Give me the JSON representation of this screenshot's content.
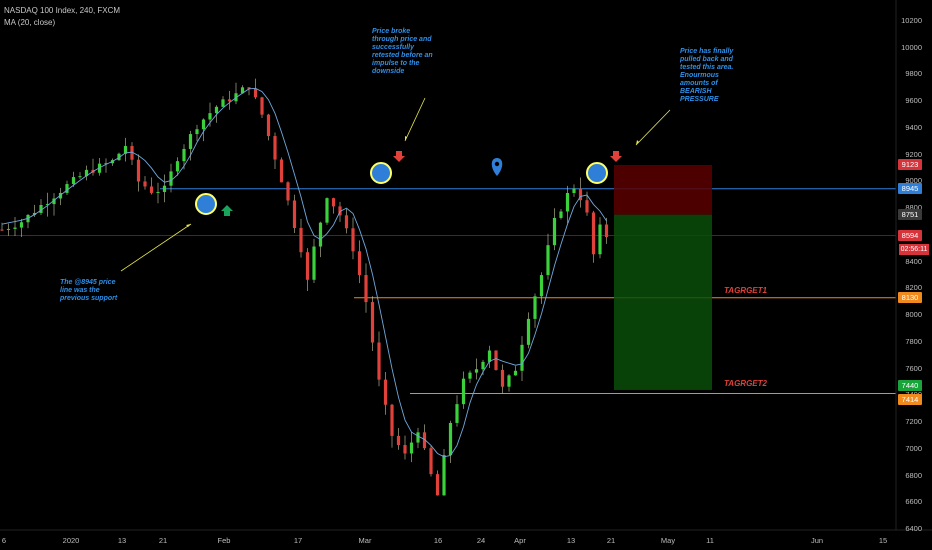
{
  "header": {
    "symbol_line": "NASDAQ 100 Index, 240, FXCM",
    "indicator_line": "MA (20, close)"
  },
  "annotations": {
    "top_note": "Price broke\nthrough price and\nsuccessfully\nretested before an\nimpulse to the\ndownside",
    "right_note": "Price has finally\npulled back and\ntested this area.\nEnourmous\namounts of\nBEARISH\nPRESSURE",
    "left_note": "The @8945 price\nline was the\nprevious support",
    "target1": "TAGRGET1",
    "target2": "TAGRGET2"
  },
  "price_labels": [
    {
      "text": "9123",
      "value": 9123,
      "color": "#d6333b"
    },
    {
      "text": "8945",
      "value": 8945,
      "color": "#2f7fd8"
    },
    {
      "text": "8751",
      "value": 8751,
      "color": "#3a3a3a"
    },
    {
      "text": "8594",
      "value": 8594,
      "color": "#d6333b"
    },
    {
      "text": "8130",
      "value": 8130,
      "color": "#f08a1c"
    },
    {
      "text": "7440",
      "value": 7440,
      "color": "#1aa33a"
    },
    {
      "text": "7414",
      "value": 7414,
      "color": "#f08a1c"
    }
  ],
  "countdown": "02:56:11",
  "colors": {
    "up": "#3ad13a",
    "down": "#e0413b",
    "ma": "#6fa8dc",
    "support": "#2f7fd8",
    "target": "#f08a1c",
    "stop_zone": "#5a0000",
    "profit_zone": "#0b4d0b"
  },
  "chart_data": {
    "type": "candlestick",
    "title": "NASDAQ 100 Index, 240, FXCM",
    "y_ticks": [
      6400,
      6600,
      6800,
      7000,
      7200,
      7400,
      7600,
      7800,
      8000,
      8200,
      8400,
      8600,
      8800,
      9000,
      9200,
      9400,
      9600,
      9800,
      10000,
      10200
    ],
    "y_range": [
      6400,
      10200
    ],
    "x_ticks": [
      "6",
      "2020",
      "13",
      "21",
      "Feb",
      "17",
      "Mar",
      "16",
      "24",
      "Apr",
      "13",
      "21",
      "May",
      "11",
      "Jun",
      "15"
    ],
    "moving_average": "MA (20, close)",
    "price_path": [
      [
        0,
        8640
      ],
      [
        3,
        8700
      ],
      [
        6,
        8820
      ],
      [
        10,
        8970
      ],
      [
        13,
        9070
      ],
      [
        17,
        9150
      ],
      [
        19,
        9270
      ],
      [
        21,
        9000
      ],
      [
        23,
        8930
      ],
      [
        25,
        8940
      ],
      [
        27,
        9180
      ],
      [
        30,
        9420
      ],
      [
        33,
        9560
      ],
      [
        36,
        9650
      ],
      [
        38,
        9718
      ],
      [
        40,
        9500
      ],
      [
        42,
        9180
      ],
      [
        44,
        8850
      ],
      [
        46,
        8500
      ],
      [
        47,
        8250
      ],
      [
        48,
        8500
      ],
      [
        50,
        8900
      ],
      [
        52,
        8750
      ],
      [
        54,
        8500
      ],
      [
        56,
        8100
      ],
      [
        58,
        7500
      ],
      [
        60,
        7100
      ],
      [
        62,
        6950
      ],
      [
        64,
        7150
      ],
      [
        66,
        6800
      ],
      [
        67,
        6650
      ],
      [
        69,
        7200
      ],
      [
        71,
        7500
      ],
      [
        73,
        7600
      ],
      [
        75,
        7750
      ],
      [
        77,
        7450
      ],
      [
        79,
        7600
      ],
      [
        81,
        8000
      ],
      [
        83,
        8300
      ],
      [
        85,
        8700
      ],
      [
        87,
        8900
      ],
      [
        88,
        8960
      ],
      [
        89,
        8880
      ],
      [
        90,
        8750
      ],
      [
        91,
        8450
      ],
      [
        92,
        8650
      ],
      [
        93,
        8594
      ]
    ],
    "horizontal_levels": [
      {
        "name": "previous support",
        "value": 8945
      },
      {
        "name": "current price",
        "value": 8594
      },
      {
        "name": "TAGRGET1",
        "value": 8130
      },
      {
        "name": "TAGRGET2",
        "value": 7414
      }
    ],
    "position": {
      "stop": 9123,
      "entry": 8751,
      "target": 7440
    },
    "markers": {
      "circles": 4,
      "down_arrows": 2,
      "up_arrows": 1
    }
  }
}
